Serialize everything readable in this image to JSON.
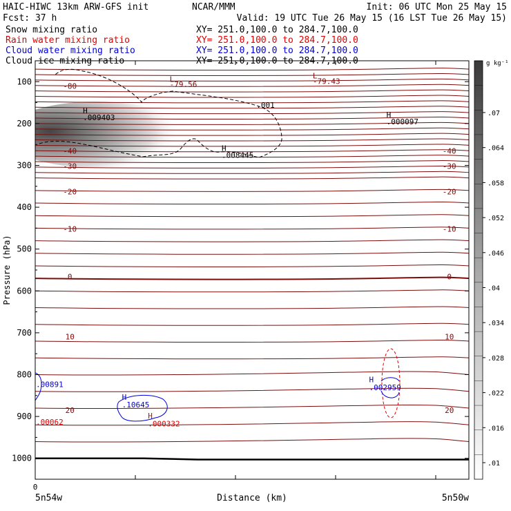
{
  "header": {
    "model_title": "HAIC-HIWC 13km ARW-GFS init",
    "org": "NCAR/MMM",
    "init": "Init: 06 UTC Mon 25 May 15",
    "fcst": "Fcst:   37 h",
    "valid": "Valid: 19 UTC Tue 26 May 15 (16 LST Tue 26 May 15)"
  },
  "legend": [
    {
      "name": "Snow mixing ratio",
      "xy": "XY= 251.0,100.0 to 284.7,100.0",
      "color": "#000000"
    },
    {
      "name": "Rain water mixing ratio",
      "xy": "XY= 251.0,100.0 to 284.7,100.0",
      "color": "#e00000"
    },
    {
      "name": "Cloud water mixing ratio",
      "xy": "XY= 251.0,100.0 to 284.7,100.0",
      "color": "#0000e0"
    },
    {
      "name": "Cloud ice mixing ratio",
      "xy": "XY= 251.0,100.0 to 284.7,100.0",
      "color": "#000000"
    }
  ],
  "colors": {
    "temperature": "#7a0c0c",
    "rain": "#e00000",
    "cloud_water": "#0000e0",
    "snow": "#000000",
    "surface": "#000000"
  },
  "chart_data": {
    "type": "line",
    "ylabel": "Pressure (hPa)",
    "xlabel": "Distance (km)",
    "y_ticks": [
      100,
      200,
      300,
      400,
      500,
      600,
      700,
      800,
      900,
      1000
    ],
    "ylim": [
      1050,
      50
    ],
    "x_ticks": [
      0
    ],
    "x_start_label": "5n54w",
    "x_end_label": "5n50w",
    "colorbar": {
      "unit": "g kg⁻¹",
      "ticks": [
        ".01",
        ".016",
        ".022",
        ".028",
        ".034",
        ".04",
        ".046",
        ".052",
        ".058",
        ".064",
        ".07"
      ]
    },
    "temperature_isotherms": [
      {
        "label": "-80",
        "pressure": 110
      },
      {
        "label": "-40",
        "pressure": 265
      },
      {
        "label": "-30",
        "pressure": 302
      },
      {
        "label": "-20",
        "pressure": 363
      },
      {
        "label": "-10",
        "pressure": 452
      },
      {
        "label": "0",
        "pressure": 566
      },
      {
        "label": "10",
        "pressure": 709
      },
      {
        "label": "20",
        "pressure": 885
      }
    ],
    "isotherm_labels_right": [
      {
        "label": "-40",
        "pressure": 265
      },
      {
        "label": "-30",
        "pressure": 302
      },
      {
        "label": "-20",
        "pressure": 363
      },
      {
        "label": "-10",
        "pressure": 452
      },
      {
        "label": "0",
        "pressure": 566
      },
      {
        "label": "10",
        "pressure": 709
      },
      {
        "label": "20",
        "pressure": 885
      }
    ],
    "annotations": [
      {
        "text": "L",
        "x": 0.31,
        "pressure": 100,
        "color": "#7a0c0c"
      },
      {
        "text": "-79.56",
        "x": 0.31,
        "pressure": 113,
        "color": "#7a0c0c"
      },
      {
        "text": "L",
        "x": 0.64,
        "pressure": 92,
        "color": "#7a0c0c"
      },
      {
        "text": "-79.43",
        "x": 0.64,
        "pressure": 105,
        "color": "#7a0c0c"
      },
      {
        "text": "H",
        "x": 0.11,
        "pressure": 175,
        "color": "#000000"
      },
      {
        "text": ".009403",
        "x": 0.11,
        "pressure": 192,
        "color": "#000000"
      },
      {
        "text": "H",
        "x": 0.43,
        "pressure": 265,
        "color": "#000000"
      },
      {
        "text": ".008445",
        "x": 0.43,
        "pressure": 282,
        "color": "#000000"
      },
      {
        "text": ".001",
        "x": 0.51,
        "pressure": 162,
        "color": "#000000"
      },
      {
        "text": "H",
        "x": 0.81,
        "pressure": 185,
        "color": "#000000"
      },
      {
        "text": ".000097",
        "x": 0.81,
        "pressure": 202,
        "color": "#000000"
      },
      {
        "text": "H",
        "x": 0.2,
        "pressure": 860,
        "color": "#0000e0"
      },
      {
        "text": ".10645",
        "x": 0.2,
        "pressure": 878,
        "color": "#0000e0"
      },
      {
        "text": "H",
        "x": 0.26,
        "pressure": 905,
        "color": "#e00000"
      },
      {
        "text": ".000332",
        "x": 0.26,
        "pressure": 924,
        "color": "#e00000"
      },
      {
        "text": "H",
        "x": 0.77,
        "pressure": 818,
        "color": "#0000e0"
      },
      {
        "text": ".002959",
        "x": 0.77,
        "pressure": 837,
        "color": "#0000e0"
      },
      {
        "text": ".00891",
        "x": 0.0,
        "pressure": 830,
        "color": "#0000e0"
      },
      {
        "text": ".00062",
        "x": 0.0,
        "pressure": 920,
        "color": "#e00000"
      }
    ],
    "surface_pressure": [
      1000,
      1000,
      1000,
      1003,
      1003,
      1003,
      1003,
      1003,
      1003
    ]
  }
}
